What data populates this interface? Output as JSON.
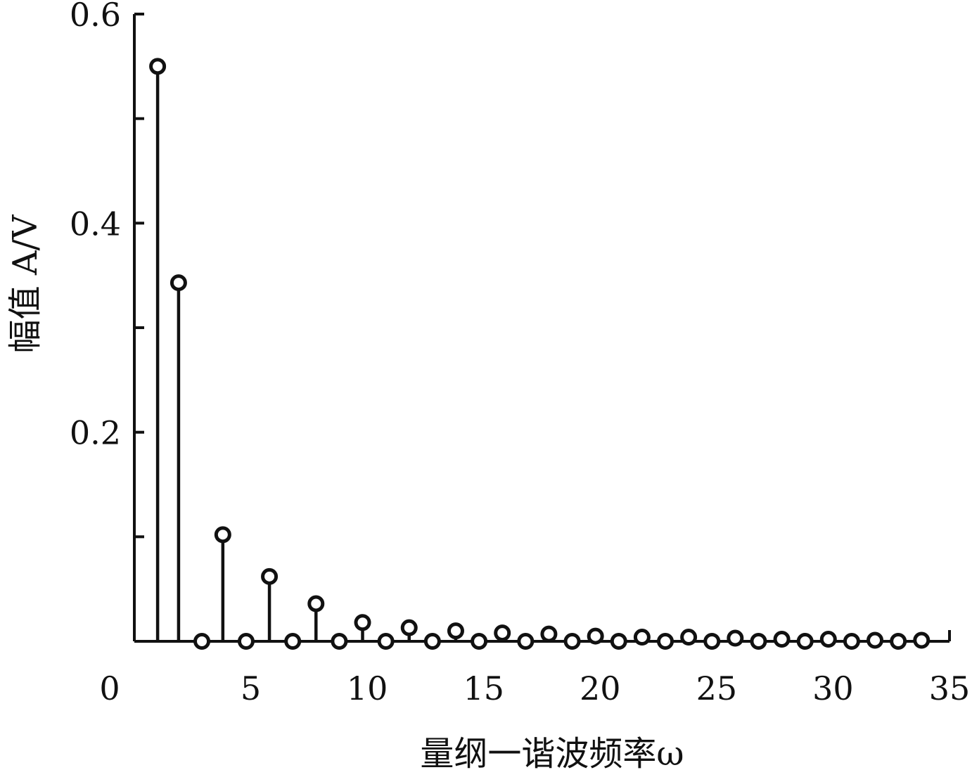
{
  "chart_data": {
    "type": "stem",
    "xlabel": "量纲一谐波频率ω",
    "ylabel": "幅值 A/V",
    "xlim": [
      0,
      35
    ],
    "ylim": [
      0,
      0.6
    ],
    "xticks": [
      "0",
      "5",
      "10",
      "15",
      "20",
      "25",
      "30",
      "35"
    ],
    "yticks": [
      "0.2",
      "0.4",
      "0.6"
    ],
    "grid": false,
    "series": [
      {
        "x": [
          1.0,
          1.9,
          2.9,
          3.8,
          4.8,
          5.8,
          6.8,
          7.8,
          8.8,
          9.8,
          10.8,
          11.8,
          12.8,
          13.8,
          14.8,
          15.8,
          16.8,
          17.8,
          18.8,
          19.8,
          20.8,
          21.8,
          22.8,
          23.8,
          24.8,
          25.8,
          26.8,
          27.8,
          28.8,
          29.8,
          30.8,
          31.8,
          32.8,
          33.8
        ],
        "y": [
          0.55,
          0.343,
          0,
          0.102,
          0,
          0.062,
          0,
          0.036,
          0,
          0.018,
          0,
          0.013,
          0,
          0.01,
          0,
          0.008,
          0,
          0.007,
          0,
          0.005,
          0,
          0.004,
          0,
          0.004,
          0,
          0.003,
          0,
          0.002,
          0,
          0.002,
          0,
          0.001,
          0,
          0.001
        ]
      }
    ]
  }
}
